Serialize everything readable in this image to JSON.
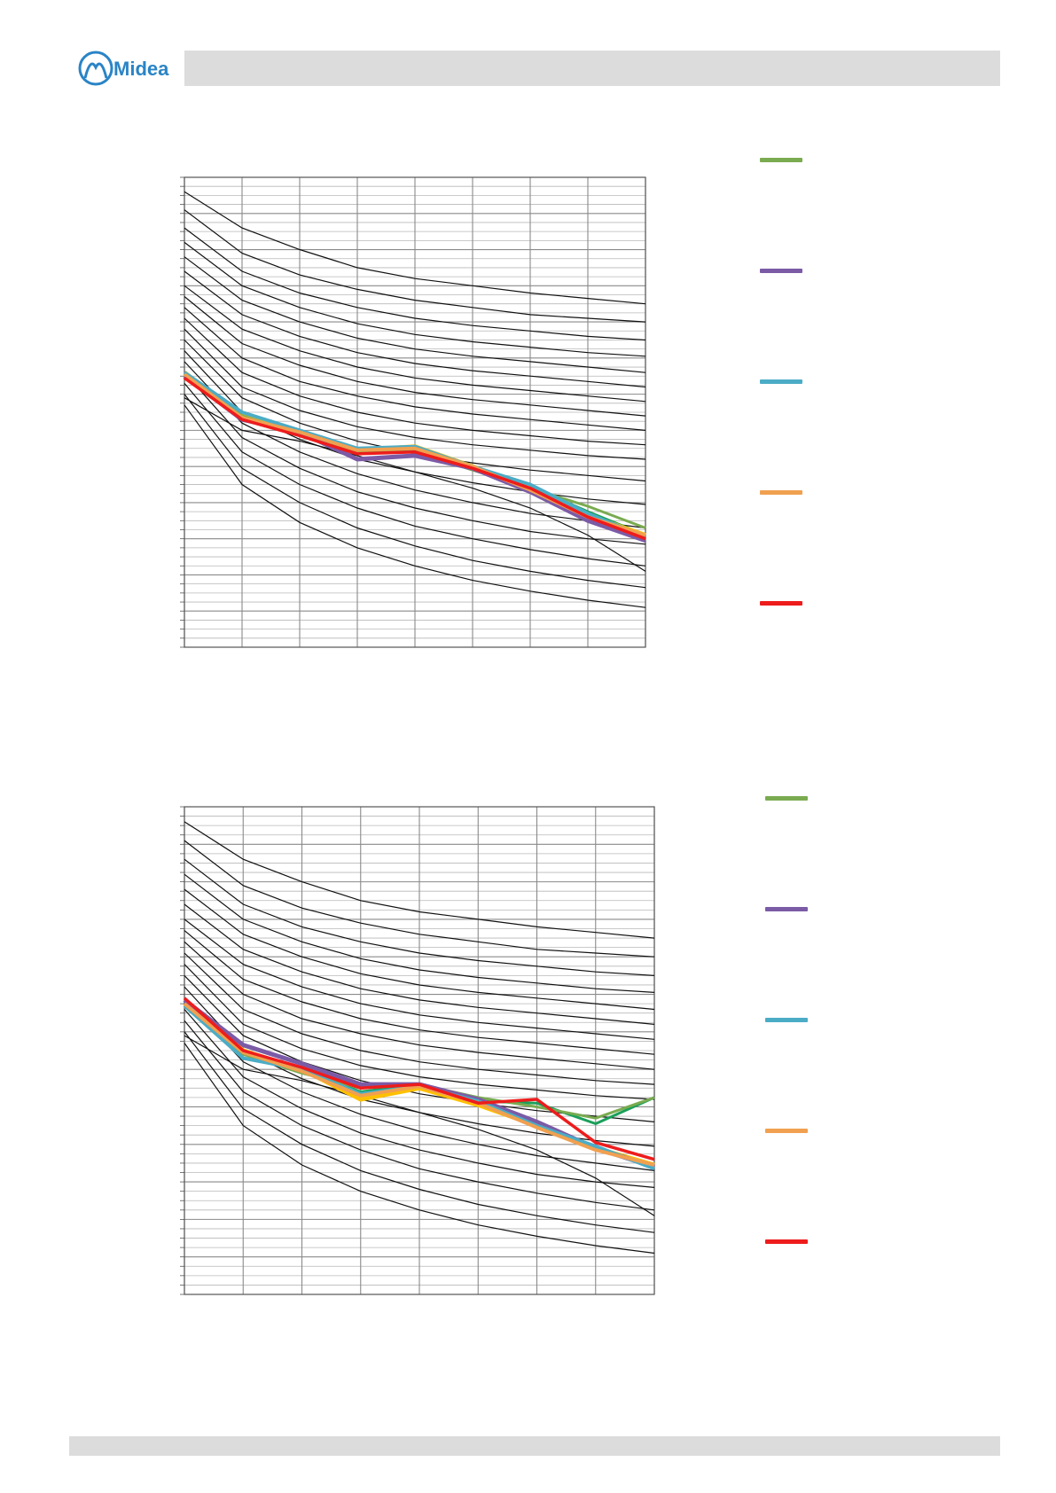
{
  "brand": {
    "logo_text": "Midea",
    "logo_color": "#2a84c6"
  },
  "header": {
    "bar_color": "#dcdcdc"
  },
  "footer": {
    "bar_color": "#dcdcdc"
  },
  "chart_data": [
    {
      "type": "line",
      "title": "",
      "xlabel": "",
      "ylabel": "",
      "xlim": [
        0,
        8
      ],
      "ylim": [
        0,
        13
      ],
      "grid": true,
      "tick_labels_visible": false,
      "x": [
        0,
        1,
        2,
        3,
        4,
        5,
        6,
        7,
        8
      ],
      "reference_curves": [
        [
          12.6,
          11.6,
          11.0,
          10.5,
          10.2,
          10.0,
          9.8,
          9.65,
          9.5
        ],
        [
          12.1,
          10.9,
          10.3,
          9.9,
          9.6,
          9.4,
          9.2,
          9.1,
          9.0
        ],
        [
          11.6,
          10.4,
          9.8,
          9.4,
          9.1,
          8.9,
          8.75,
          8.6,
          8.5
        ],
        [
          11.2,
          10.0,
          9.4,
          8.95,
          8.65,
          8.45,
          8.3,
          8.15,
          8.05
        ],
        [
          10.8,
          9.6,
          9.0,
          8.55,
          8.25,
          8.05,
          7.9,
          7.75,
          7.6
        ],
        [
          10.4,
          9.2,
          8.6,
          8.15,
          7.85,
          7.65,
          7.5,
          7.35,
          7.2
        ],
        [
          10.0,
          8.8,
          8.2,
          7.75,
          7.45,
          7.25,
          7.1,
          6.95,
          6.8
        ],
        [
          9.7,
          8.4,
          7.8,
          7.35,
          7.05,
          6.85,
          6.7,
          6.55,
          6.4
        ],
        [
          9.4,
          8.0,
          7.35,
          6.95,
          6.65,
          6.45,
          6.3,
          6.15,
          6.0
        ],
        [
          9.1,
          7.6,
          6.95,
          6.5,
          6.2,
          6.0,
          5.85,
          5.7,
          5.6
        ],
        [
          8.8,
          7.2,
          6.55,
          6.1,
          5.8,
          5.6,
          5.45,
          5.3,
          5.2
        ],
        [
          8.5,
          6.9,
          6.2,
          5.7,
          5.35,
          5.1,
          4.9,
          4.75,
          4.6
        ],
        [
          8.2,
          6.5,
          5.75,
          5.2,
          4.85,
          4.55,
          4.3,
          4.1,
          3.95
        ],
        [
          7.9,
          6.2,
          5.4,
          4.8,
          4.35,
          4.0,
          3.7,
          3.5,
          3.3
        ],
        [
          7.6,
          5.8,
          4.95,
          4.3,
          3.85,
          3.5,
          3.2,
          3.0,
          2.85
        ],
        [
          7.3,
          5.4,
          4.5,
          3.85,
          3.35,
          3.0,
          2.7,
          2.45,
          2.25
        ],
        [
          7.0,
          4.95,
          4.0,
          3.3,
          2.8,
          2.4,
          2.1,
          1.85,
          1.65
        ],
        [
          6.7,
          4.5,
          3.45,
          2.75,
          2.25,
          1.85,
          1.55,
          1.3,
          1.1
        ],
        [
          6.9,
          6.0,
          5.7,
          5.3,
          4.85,
          4.4,
          3.85,
          3.1,
          2.1
        ]
      ],
      "series": [
        {
          "color": "#7aab50",
          "values": [
            7.55,
            6.4,
            5.9,
            5.4,
            5.4,
            4.9,
            4.4,
            3.9,
            3.3
          ]
        },
        {
          "color": "#7b5ba6",
          "values": [
            7.5,
            6.3,
            5.95,
            5.2,
            5.3,
            4.95,
            4.3,
            3.5,
            2.95
          ]
        },
        {
          "color": "#4bacc6",
          "values": [
            7.6,
            6.5,
            6.0,
            5.5,
            5.55,
            5.0,
            4.5,
            3.7,
            3.05
          ]
        },
        {
          "color": "#f0a050",
          "values": [
            7.55,
            6.35,
            5.95,
            5.45,
            5.5,
            5.0,
            4.35,
            3.6,
            3.1
          ]
        },
        {
          "color": "#ee1c1c",
          "values": [
            7.45,
            6.3,
            5.85,
            5.35,
            5.4,
            4.95,
            4.4,
            3.6,
            3.0
          ]
        }
      ],
      "overlay_series": [
        {
          "color": "#1aa05a",
          "values": [
            7.55,
            6.35,
            5.9,
            5.4,
            5.45,
            4.95,
            4.45,
            3.75,
            3.1
          ]
        },
        {
          "color": "#ffc000",
          "values": [
            7.6,
            6.4,
            5.95,
            5.45,
            5.55,
            5.0,
            4.4,
            3.65,
            3.1
          ]
        }
      ]
    },
    {
      "type": "line",
      "title": "",
      "xlabel": "",
      "ylabel": "",
      "xlim": [
        0,
        8
      ],
      "ylim": [
        0,
        13
      ],
      "grid": true,
      "tick_labels_visible": false,
      "x": [
        0,
        1,
        2,
        3,
        4,
        5,
        6,
        7,
        8
      ],
      "reference_curves": [
        [
          12.6,
          11.6,
          11.0,
          10.5,
          10.2,
          10.0,
          9.8,
          9.65,
          9.5
        ],
        [
          12.1,
          10.9,
          10.3,
          9.9,
          9.6,
          9.4,
          9.2,
          9.1,
          9.0
        ],
        [
          11.6,
          10.4,
          9.8,
          9.4,
          9.1,
          8.9,
          8.75,
          8.6,
          8.5
        ],
        [
          11.2,
          10.0,
          9.4,
          8.95,
          8.65,
          8.45,
          8.3,
          8.15,
          8.05
        ],
        [
          10.8,
          9.6,
          9.0,
          8.55,
          8.25,
          8.05,
          7.9,
          7.75,
          7.6
        ],
        [
          10.4,
          9.2,
          8.6,
          8.15,
          7.85,
          7.65,
          7.5,
          7.35,
          7.2
        ],
        [
          10.0,
          8.8,
          8.2,
          7.75,
          7.45,
          7.25,
          7.1,
          6.95,
          6.8
        ],
        [
          9.7,
          8.4,
          7.8,
          7.35,
          7.05,
          6.85,
          6.7,
          6.55,
          6.4
        ],
        [
          9.4,
          8.0,
          7.35,
          6.95,
          6.65,
          6.45,
          6.3,
          6.15,
          6.0
        ],
        [
          9.1,
          7.6,
          6.95,
          6.5,
          6.2,
          6.0,
          5.85,
          5.7,
          5.6
        ],
        [
          8.8,
          7.2,
          6.55,
          6.1,
          5.8,
          5.6,
          5.45,
          5.3,
          5.2
        ],
        [
          8.5,
          6.9,
          6.2,
          5.7,
          5.35,
          5.1,
          4.9,
          4.75,
          4.6
        ],
        [
          8.2,
          6.5,
          5.75,
          5.2,
          4.85,
          4.55,
          4.3,
          4.1,
          3.95
        ],
        [
          7.9,
          6.2,
          5.4,
          4.8,
          4.35,
          4.0,
          3.7,
          3.5,
          3.3
        ],
        [
          7.6,
          5.8,
          4.95,
          4.3,
          3.85,
          3.5,
          3.2,
          3.0,
          2.85
        ],
        [
          7.3,
          5.4,
          4.5,
          3.85,
          3.35,
          3.0,
          2.7,
          2.45,
          2.25
        ],
        [
          7.0,
          4.95,
          4.0,
          3.3,
          2.8,
          2.4,
          2.1,
          1.85,
          1.65
        ],
        [
          6.7,
          4.5,
          3.45,
          2.75,
          2.25,
          1.85,
          1.55,
          1.3,
          1.1
        ],
        [
          6.9,
          6.0,
          5.7,
          5.3,
          4.85,
          4.4,
          3.85,
          3.1,
          2.1
        ]
      ],
      "series": [
        {
          "color": "#7aab50",
          "values": [
            7.75,
            6.4,
            5.9,
            5.5,
            5.6,
            5.25,
            5.0,
            4.7,
            5.25
          ]
        },
        {
          "color": "#7b5ba6",
          "values": [
            7.85,
            6.65,
            6.15,
            5.6,
            5.6,
            5.2,
            4.6,
            3.9,
            3.4
          ]
        },
        {
          "color": "#4bacc6",
          "values": [
            7.7,
            6.3,
            6.0,
            5.35,
            5.55,
            5.15,
            4.5,
            3.95,
            3.35
          ]
        },
        {
          "color": "#f0a050",
          "values": [
            7.75,
            6.45,
            5.95,
            5.3,
            5.55,
            5.1,
            4.45,
            3.85,
            3.45
          ]
        },
        {
          "color": "#ee1c1c",
          "values": [
            7.9,
            6.5,
            6.05,
            5.5,
            5.6,
            5.1,
            5.2,
            4.05,
            3.6
          ]
        }
      ],
      "overlay_series": [
        {
          "color": "#1aa05a",
          "values": [
            7.7,
            6.4,
            6.0,
            5.4,
            5.6,
            5.15,
            5.1,
            4.55,
            5.25
          ]
        },
        {
          "color": "#ffc000",
          "values": [
            7.75,
            6.5,
            6.0,
            5.2,
            5.5,
            5.05,
            4.5,
            3.9,
            3.45
          ]
        }
      ]
    }
  ],
  "legends": [
    {
      "items": [
        {
          "color": "#7aab50",
          "label": ""
        },
        {
          "color": "#7b5ba6",
          "label": ""
        },
        {
          "color": "#4bacc6",
          "label": ""
        },
        {
          "color": "#f0a050",
          "label": ""
        },
        {
          "color": "#ee1c1c",
          "label": ""
        }
      ]
    },
    {
      "items": [
        {
          "color": "#7aab50",
          "label": ""
        },
        {
          "color": "#7b5ba6",
          "label": ""
        },
        {
          "color": "#4bacc6",
          "label": ""
        },
        {
          "color": "#f0a050",
          "label": ""
        },
        {
          "color": "#ee1c1c",
          "label": ""
        }
      ]
    }
  ]
}
